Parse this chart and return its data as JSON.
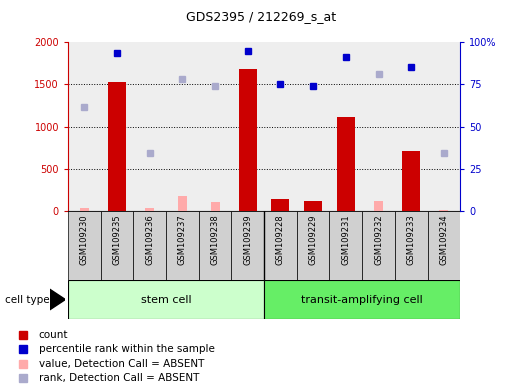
{
  "title": "GDS2395 / 212269_s_at",
  "samples": [
    "GSM109230",
    "GSM109235",
    "GSM109236",
    "GSM109237",
    "GSM109238",
    "GSM109239",
    "GSM109228",
    "GSM109229",
    "GSM109231",
    "GSM109232",
    "GSM109233",
    "GSM109234"
  ],
  "count_values": [
    null,
    1530,
    null,
    null,
    null,
    1680,
    150,
    120,
    1115,
    null,
    715,
    null
  ],
  "count_absent_values": [
    40,
    null,
    35,
    180,
    110,
    null,
    null,
    null,
    null,
    115,
    null,
    20
  ],
  "percentile_values": [
    null,
    1870,
    null,
    null,
    null,
    1900,
    1500,
    1480,
    1830,
    null,
    1710,
    null
  ],
  "rank_absent_values": [
    1230,
    null,
    690,
    1560,
    1480,
    null,
    null,
    null,
    null,
    1620,
    null,
    690
  ],
  "group1_label": "stem cell",
  "group2_label": "transit-amplifying cell",
  "group1_color": "#ccffcc",
  "group2_color": "#66ee66",
  "ylim_left": [
    0,
    2000
  ],
  "yticks_left": [
    0,
    500,
    1000,
    1500,
    2000
  ],
  "yticks_right": [
    0,
    25,
    50,
    75,
    100
  ],
  "bar_color_count": "#cc0000",
  "bar_color_absent": "#ffaaaa",
  "dot_color_percentile": "#0000cc",
  "dot_color_rank_absent": "#aaaacc",
  "legend_count": "count",
  "legend_percentile": "percentile rank within the sample",
  "legend_absent_val": "value, Detection Call = ABSENT",
  "legend_absent_rank": "rank, Detection Call = ABSENT",
  "bg_color": "#eeeeee",
  "sample_box_color": "#d0d0d0"
}
